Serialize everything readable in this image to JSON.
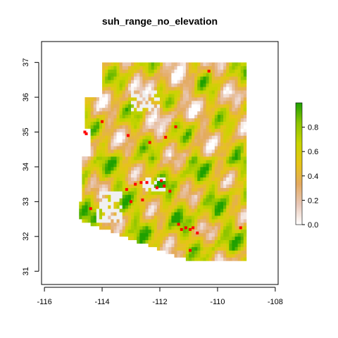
{
  "chart_data": {
    "type": "heatmap",
    "title": "suh_range_no_elevation",
    "xlabel": "",
    "ylabel": "",
    "x_ticks": [
      -116,
      -114,
      -112,
      -110,
      -108
    ],
    "x_tick_labels": [
      "-116",
      "-114",
      "-112",
      "-110",
      "-108"
    ],
    "y_ticks": [
      31,
      32,
      33,
      34,
      35,
      36,
      37
    ],
    "y_tick_labels": [
      "31",
      "32",
      "33",
      "34",
      "35",
      "36",
      "37"
    ],
    "xlim": [
      -116.1,
      -107.9
    ],
    "ylim": [
      30.62,
      37.6
    ],
    "legend": {
      "position": "right",
      "range": [
        0,
        1
      ],
      "ticks": [
        0.0,
        0.2,
        0.4,
        0.6,
        0.8
      ],
      "tick_labels": [
        "0.0",
        "0.2",
        "0.4",
        "0.6",
        "0.8"
      ],
      "colors": [
        "#ffffff",
        "#e8c8b8",
        "#e4aa60",
        "#e6c418",
        "#c8d400",
        "#8cc400",
        "#1ea000"
      ]
    },
    "nodata_color": "#f0f0f0",
    "observation_color": "#ff0000",
    "observations": [
      [
        -114.0,
        35.3
      ],
      [
        -114.6,
        35.0
      ],
      [
        -114.55,
        34.95
      ],
      [
        -113.1,
        34.9
      ],
      [
        -112.35,
        34.7
      ],
      [
        -111.8,
        34.85
      ],
      [
        -111.45,
        35.15
      ],
      [
        -110.3,
        36.75
      ],
      [
        -112.85,
        33.5
      ],
      [
        -112.65,
        33.55
      ],
      [
        -112.45,
        33.55
      ],
      [
        -112.1,
        33.4
      ],
      [
        -111.85,
        33.45
      ],
      [
        -111.65,
        33.3
      ],
      [
        -111.95,
        33.6
      ],
      [
        -112.6,
        33.05
      ],
      [
        -113.0,
        33.0
      ],
      [
        -113.15,
        33.35
      ],
      [
        -111.35,
        32.35
      ],
      [
        -111.25,
        32.2
      ],
      [
        -111.1,
        32.25
      ],
      [
        -110.95,
        32.2
      ],
      [
        -110.85,
        32.25
      ],
      [
        -110.7,
        32.1
      ],
      [
        -110.95,
        31.6
      ],
      [
        -109.2,
        32.25
      ],
      [
        -114.4,
        32.8
      ]
    ]
  }
}
